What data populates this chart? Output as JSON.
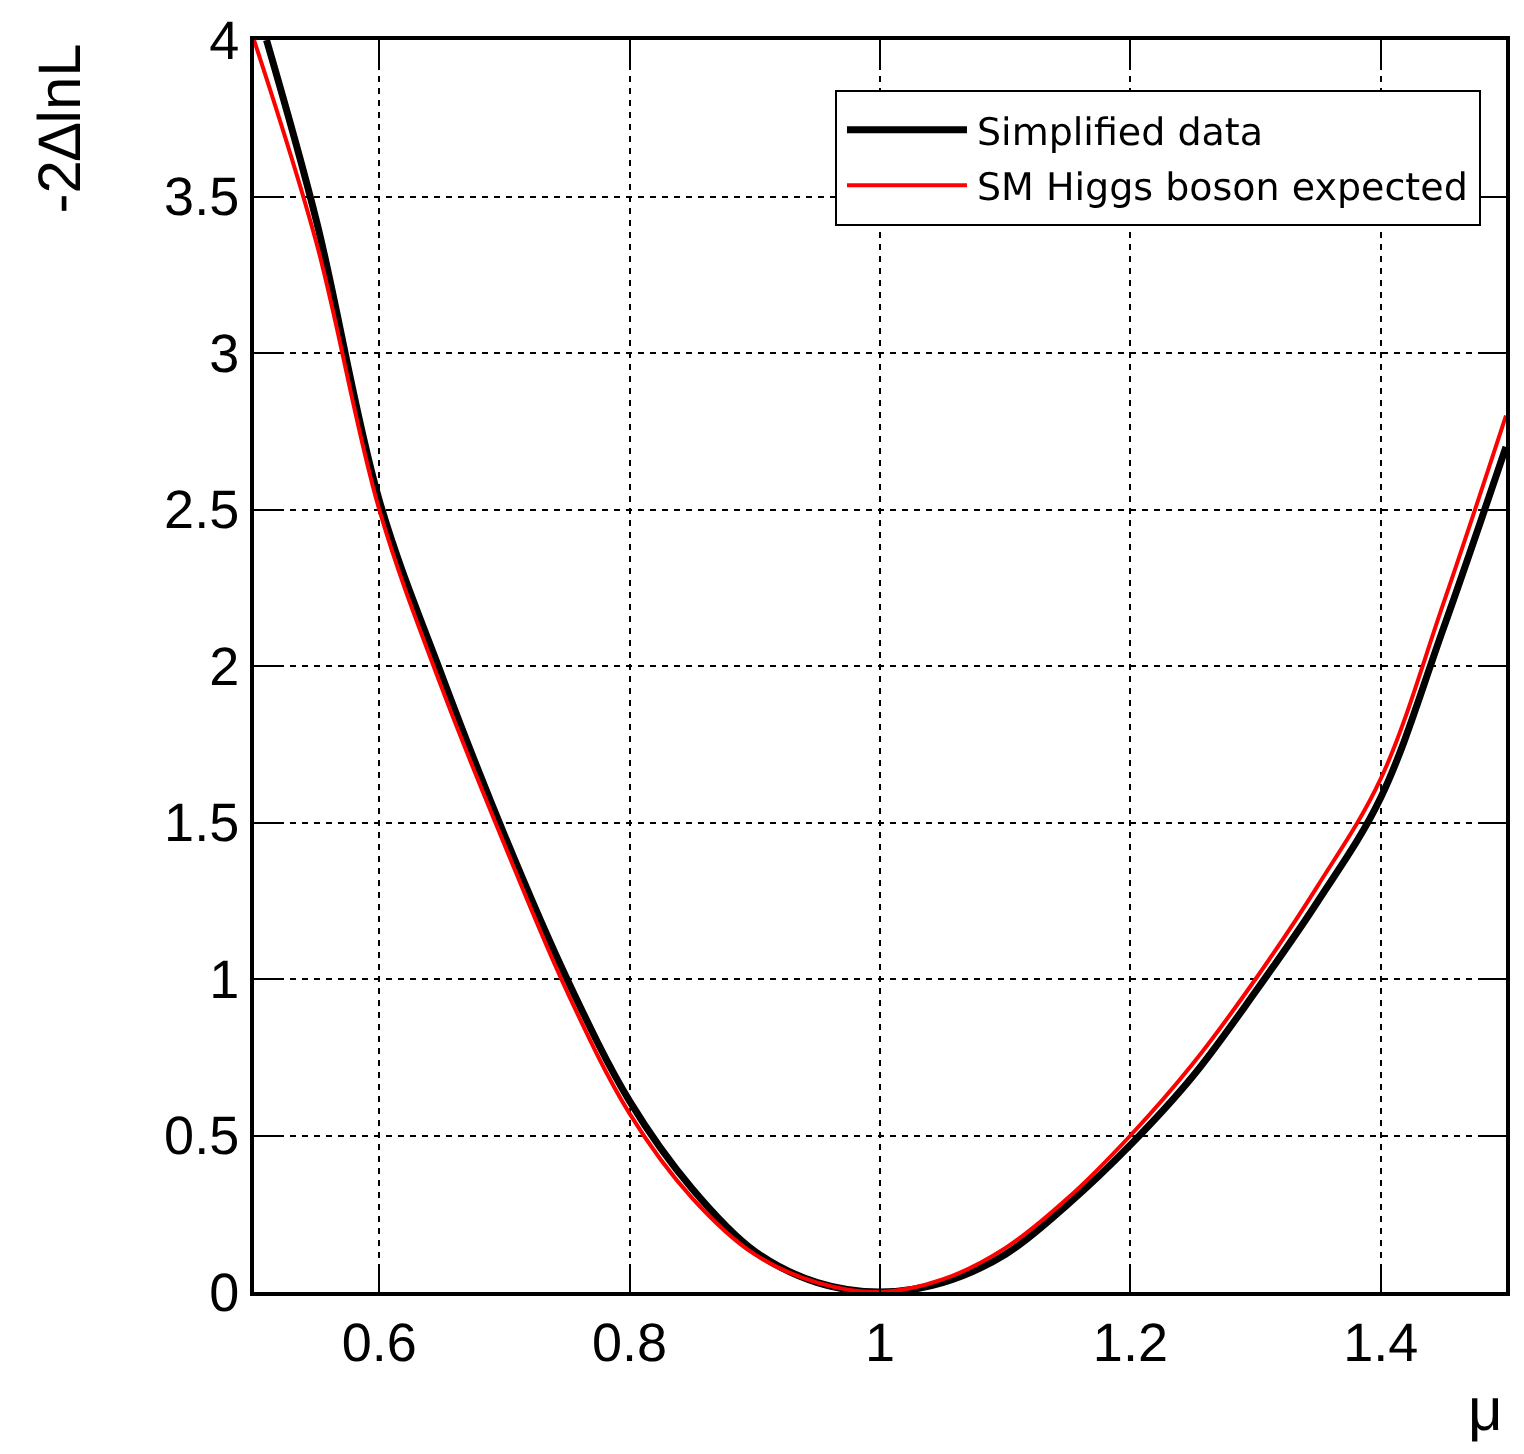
{
  "chart_data": {
    "type": "line",
    "xlabel": "μ",
    "ylabel": "-2∆lnL",
    "xlim": [
      0.5,
      1.5
    ],
    "xticks": [
      0.6,
      0.8,
      1,
      1.2,
      1.4
    ],
    "ylim": [
      0,
      4
    ],
    "yticks": [
      0,
      0.5,
      1,
      1.5,
      2,
      2.5,
      3,
      3.5,
      4
    ],
    "grid": true,
    "legend": "top right",
    "line_style": "solid",
    "marker": "none",
    "series": [
      {
        "name": "Simplified data",
        "color": "#000000",
        "x": [
          0.51,
          0.55,
          0.6,
          0.65,
          0.7,
          0.75,
          0.8,
          0.85,
          0.9,
          0.95,
          1.0,
          1.05,
          1.1,
          1.15,
          1.2,
          1.25,
          1.3,
          1.35,
          1.4,
          1.45,
          1.5
        ],
        "values": [
          4.0,
          3.42,
          2.53,
          1.97,
          1.46,
          1.0,
          0.61,
          0.33,
          0.13,
          0.03,
          0,
          0.03,
          0.12,
          0.28,
          0.47,
          0.69,
          0.96,
          1.25,
          1.58,
          2.12,
          2.7
        ]
      },
      {
        "name": "SM Higgs boson expected",
        "color": "#ff0000",
        "x": [
          0.5,
          0.55,
          0.6,
          0.65,
          0.7,
          0.75,
          0.8,
          0.85,
          0.9,
          0.95,
          1.0,
          1.05,
          1.1,
          1.15,
          1.2,
          1.25,
          1.3,
          1.35,
          1.4,
          1.45,
          1.5
        ],
        "values": [
          4.0,
          3.35,
          2.5,
          1.93,
          1.43,
          0.96,
          0.57,
          0.3,
          0.12,
          0.03,
          0,
          0.04,
          0.14,
          0.3,
          0.5,
          0.73,
          1.0,
          1.3,
          1.64,
          2.2,
          2.8
        ]
      }
    ]
  }
}
